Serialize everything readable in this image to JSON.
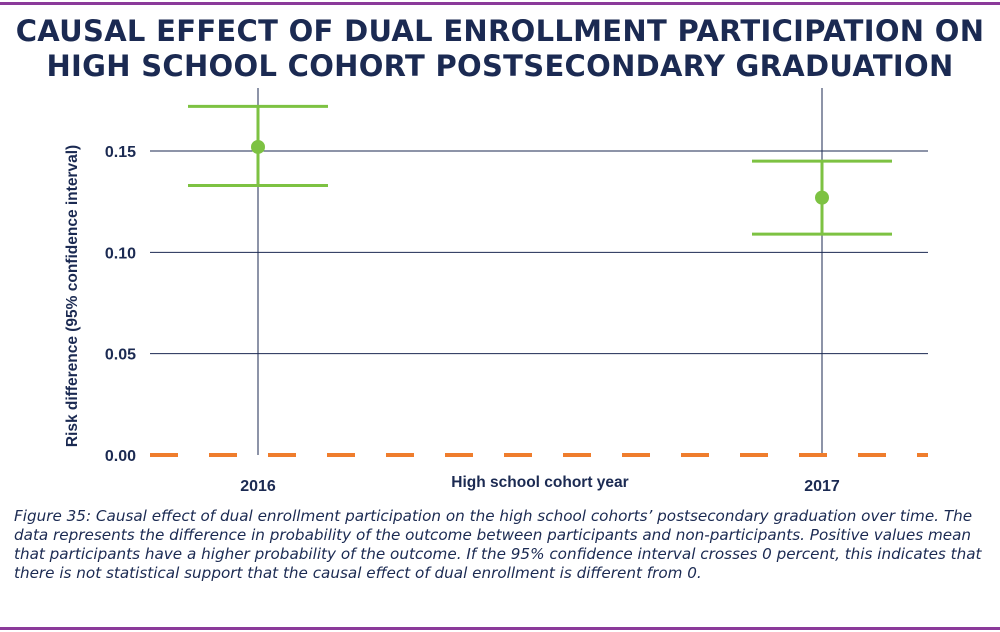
{
  "title_lines": [
    "CAUSAL EFFECT OF DUAL ENROLLMENT PARTICIPATION ON",
    "HIGH SCHOOL COHORT POSTSECONDARY GRADUATION"
  ],
  "chart_data": {
    "type": "scatter",
    "title": "Causal effect of dual enrollment participation on high school cohort postsecondary graduation",
    "xlabel": "High school cohort year",
    "ylabel": "Risk difference (95% confidence interval)",
    "categories": [
      "2016",
      "2017"
    ],
    "series": [
      {
        "name": "Risk difference",
        "values": [
          0.152,
          0.127
        ],
        "ci_lower": [
          0.133,
          0.109
        ],
        "ci_upper": [
          0.172,
          0.145
        ]
      }
    ],
    "ylim": [
      0,
      0.175
    ],
    "yticks": [
      0.0,
      0.05,
      0.1,
      0.15
    ],
    "ytick_labels": [
      "0.00",
      "0.05",
      "0.10",
      "0.15"
    ],
    "reference_line": {
      "value": 0,
      "style": "dashed"
    },
    "grid": true,
    "colors": {
      "point": "#7dc242",
      "reference": "#ef7d2d",
      "grid": "#1b2a52",
      "text": "#1b2a52"
    }
  },
  "caption": "Figure 35: Causal effect of dual enrollment participation on the high school cohorts’ postsecondary graduation over time. The data represents the difference in probability of the outcome between participants and non-participants. Positive values mean that participants have a higher probability of the outcome. If the 95% confidence interval crosses 0 percent, this indicates that there is not statistical support that the causal effect of dual enrollment is different from 0."
}
